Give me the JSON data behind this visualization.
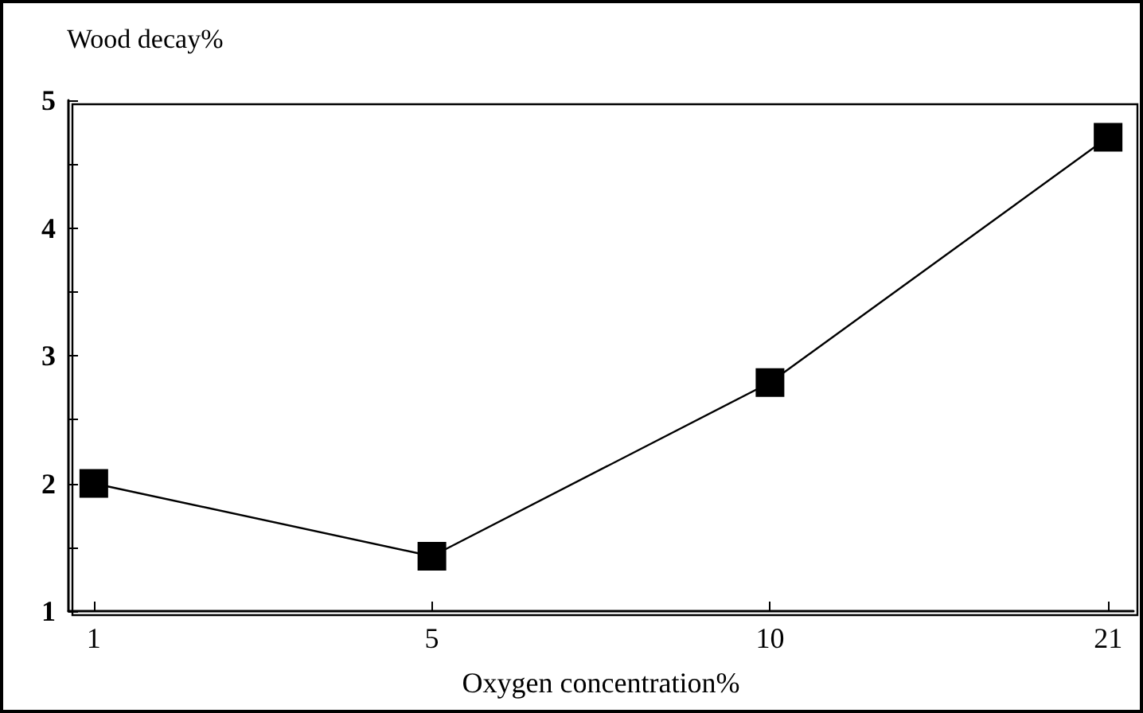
{
  "chart_data": {
    "type": "line",
    "ylabel": "Wood decay%",
    "xlabel": "Oxygen concentration%",
    "categories": [
      "1",
      "5",
      "10",
      "21"
    ],
    "series": [
      {
        "color": "#000000",
        "values": [
          2.0,
          1.43,
          2.79,
          4.71
        ]
      }
    ],
    "ylim": [
      1,
      5
    ],
    "yticks": [
      1,
      {
        "value": 1.5,
        "label": null
      },
      2,
      {
        "value": 2.5,
        "label": null
      },
      3,
      {
        "value": 3.5,
        "label": null
      },
      4,
      {
        "value": 4.5,
        "label": null
      },
      5
    ],
    "marker": "square",
    "line_style": "solid",
    "grid": false
  }
}
